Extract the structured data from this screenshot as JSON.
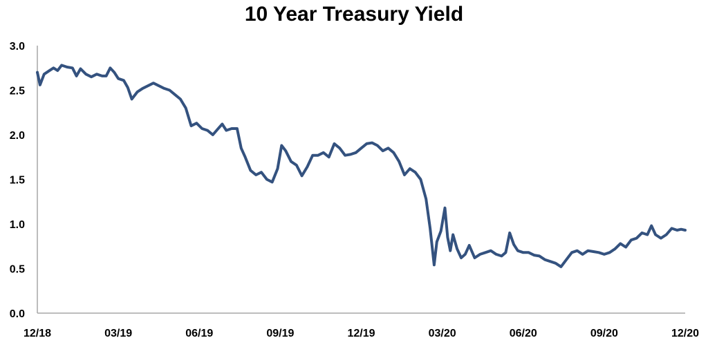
{
  "chart_data": {
    "type": "line",
    "title": "10 Year Treasury Yield",
    "xlabel": "",
    "ylabel": "",
    "ylim": [
      0,
      3
    ],
    "y_ticks": [
      "0.0",
      "0.5",
      "1.0",
      "1.5",
      "2.0",
      "2.5",
      "3.0"
    ],
    "x_ticks": [
      "12/18",
      "03/19",
      "06/19",
      "09/19",
      "12/19",
      "03/20",
      "06/20",
      "09/20",
      "12/20"
    ],
    "x_tick_positions": [
      0,
      3,
      6,
      9,
      12,
      15,
      18,
      21,
      24
    ],
    "x_range": [
      0,
      24
    ],
    "grid": false,
    "line_color": "#34527f",
    "series": [
      {
        "values": [
          [
            0.0,
            2.7
          ],
          [
            0.1,
            2.56
          ],
          [
            0.25,
            2.68
          ],
          [
            0.45,
            2.72
          ],
          [
            0.6,
            2.75
          ],
          [
            0.75,
            2.72
          ],
          [
            0.9,
            2.78
          ],
          [
            1.1,
            2.76
          ],
          [
            1.3,
            2.75
          ],
          [
            1.45,
            2.66
          ],
          [
            1.6,
            2.74
          ],
          [
            1.8,
            2.68
          ],
          [
            2.0,
            2.65
          ],
          [
            2.2,
            2.68
          ],
          [
            2.4,
            2.66
          ],
          [
            2.55,
            2.66
          ],
          [
            2.7,
            2.75
          ],
          [
            2.85,
            2.7
          ],
          [
            3.0,
            2.63
          ],
          [
            3.2,
            2.61
          ],
          [
            3.35,
            2.53
          ],
          [
            3.5,
            2.4
          ],
          [
            3.7,
            2.48
          ],
          [
            3.9,
            2.52
          ],
          [
            4.1,
            2.55
          ],
          [
            4.3,
            2.58
          ],
          [
            4.5,
            2.55
          ],
          [
            4.7,
            2.52
          ],
          [
            4.9,
            2.5
          ],
          [
            5.1,
            2.45
          ],
          [
            5.3,
            2.4
          ],
          [
            5.5,
            2.3
          ],
          [
            5.7,
            2.1
          ],
          [
            5.9,
            2.13
          ],
          [
            6.1,
            2.07
          ],
          [
            6.3,
            2.05
          ],
          [
            6.5,
            2.0
          ],
          [
            6.7,
            2.07
          ],
          [
            6.85,
            2.12
          ],
          [
            7.0,
            2.05
          ],
          [
            7.2,
            2.07
          ],
          [
            7.4,
            2.07
          ],
          [
            7.55,
            1.85
          ],
          [
            7.7,
            1.75
          ],
          [
            7.9,
            1.6
          ],
          [
            8.1,
            1.55
          ],
          [
            8.3,
            1.58
          ],
          [
            8.5,
            1.5
          ],
          [
            8.7,
            1.47
          ],
          [
            8.9,
            1.62
          ],
          [
            9.05,
            1.88
          ],
          [
            9.2,
            1.82
          ],
          [
            9.4,
            1.7
          ],
          [
            9.6,
            1.66
          ],
          [
            9.8,
            1.54
          ],
          [
            10.0,
            1.64
          ],
          [
            10.2,
            1.77
          ],
          [
            10.4,
            1.77
          ],
          [
            10.6,
            1.8
          ],
          [
            10.8,
            1.75
          ],
          [
            11.0,
            1.9
          ],
          [
            11.2,
            1.85
          ],
          [
            11.4,
            1.77
          ],
          [
            11.6,
            1.78
          ],
          [
            11.8,
            1.8
          ],
          [
            12.0,
            1.85
          ],
          [
            12.2,
            1.9
          ],
          [
            12.4,
            1.91
          ],
          [
            12.6,
            1.88
          ],
          [
            12.8,
            1.82
          ],
          [
            13.0,
            1.85
          ],
          [
            13.2,
            1.8
          ],
          [
            13.4,
            1.7
          ],
          [
            13.6,
            1.55
          ],
          [
            13.8,
            1.62
          ],
          [
            14.0,
            1.58
          ],
          [
            14.2,
            1.5
          ],
          [
            14.4,
            1.28
          ],
          [
            14.55,
            0.95
          ],
          [
            14.7,
            0.54
          ],
          [
            14.8,
            0.8
          ],
          [
            14.95,
            0.92
          ],
          [
            15.1,
            1.18
          ],
          [
            15.2,
            0.85
          ],
          [
            15.3,
            0.7
          ],
          [
            15.4,
            0.88
          ],
          [
            15.55,
            0.72
          ],
          [
            15.7,
            0.62
          ],
          [
            15.85,
            0.66
          ],
          [
            16.0,
            0.76
          ],
          [
            16.2,
            0.62
          ],
          [
            16.4,
            0.66
          ],
          [
            16.6,
            0.68
          ],
          [
            16.8,
            0.7
          ],
          [
            17.0,
            0.66
          ],
          [
            17.2,
            0.64
          ],
          [
            17.35,
            0.68
          ],
          [
            17.5,
            0.9
          ],
          [
            17.65,
            0.77
          ],
          [
            17.8,
            0.7
          ],
          [
            18.0,
            0.68
          ],
          [
            18.2,
            0.68
          ],
          [
            18.4,
            0.65
          ],
          [
            18.6,
            0.64
          ],
          [
            18.8,
            0.6
          ],
          [
            19.0,
            0.58
          ],
          [
            19.2,
            0.56
          ],
          [
            19.4,
            0.52
          ],
          [
            19.6,
            0.6
          ],
          [
            19.8,
            0.68
          ],
          [
            20.0,
            0.7
          ],
          [
            20.2,
            0.66
          ],
          [
            20.4,
            0.7
          ],
          [
            20.6,
            0.69
          ],
          [
            20.8,
            0.68
          ],
          [
            21.0,
            0.66
          ],
          [
            21.2,
            0.68
          ],
          [
            21.4,
            0.72
          ],
          [
            21.6,
            0.78
          ],
          [
            21.8,
            0.74
          ],
          [
            22.0,
            0.82
          ],
          [
            22.2,
            0.84
          ],
          [
            22.4,
            0.9
          ],
          [
            22.6,
            0.88
          ],
          [
            22.75,
            0.98
          ],
          [
            22.9,
            0.88
          ],
          [
            23.1,
            0.84
          ],
          [
            23.3,
            0.88
          ],
          [
            23.5,
            0.95
          ],
          [
            23.7,
            0.93
          ],
          [
            23.85,
            0.94
          ],
          [
            24.0,
            0.93
          ]
        ]
      }
    ]
  }
}
